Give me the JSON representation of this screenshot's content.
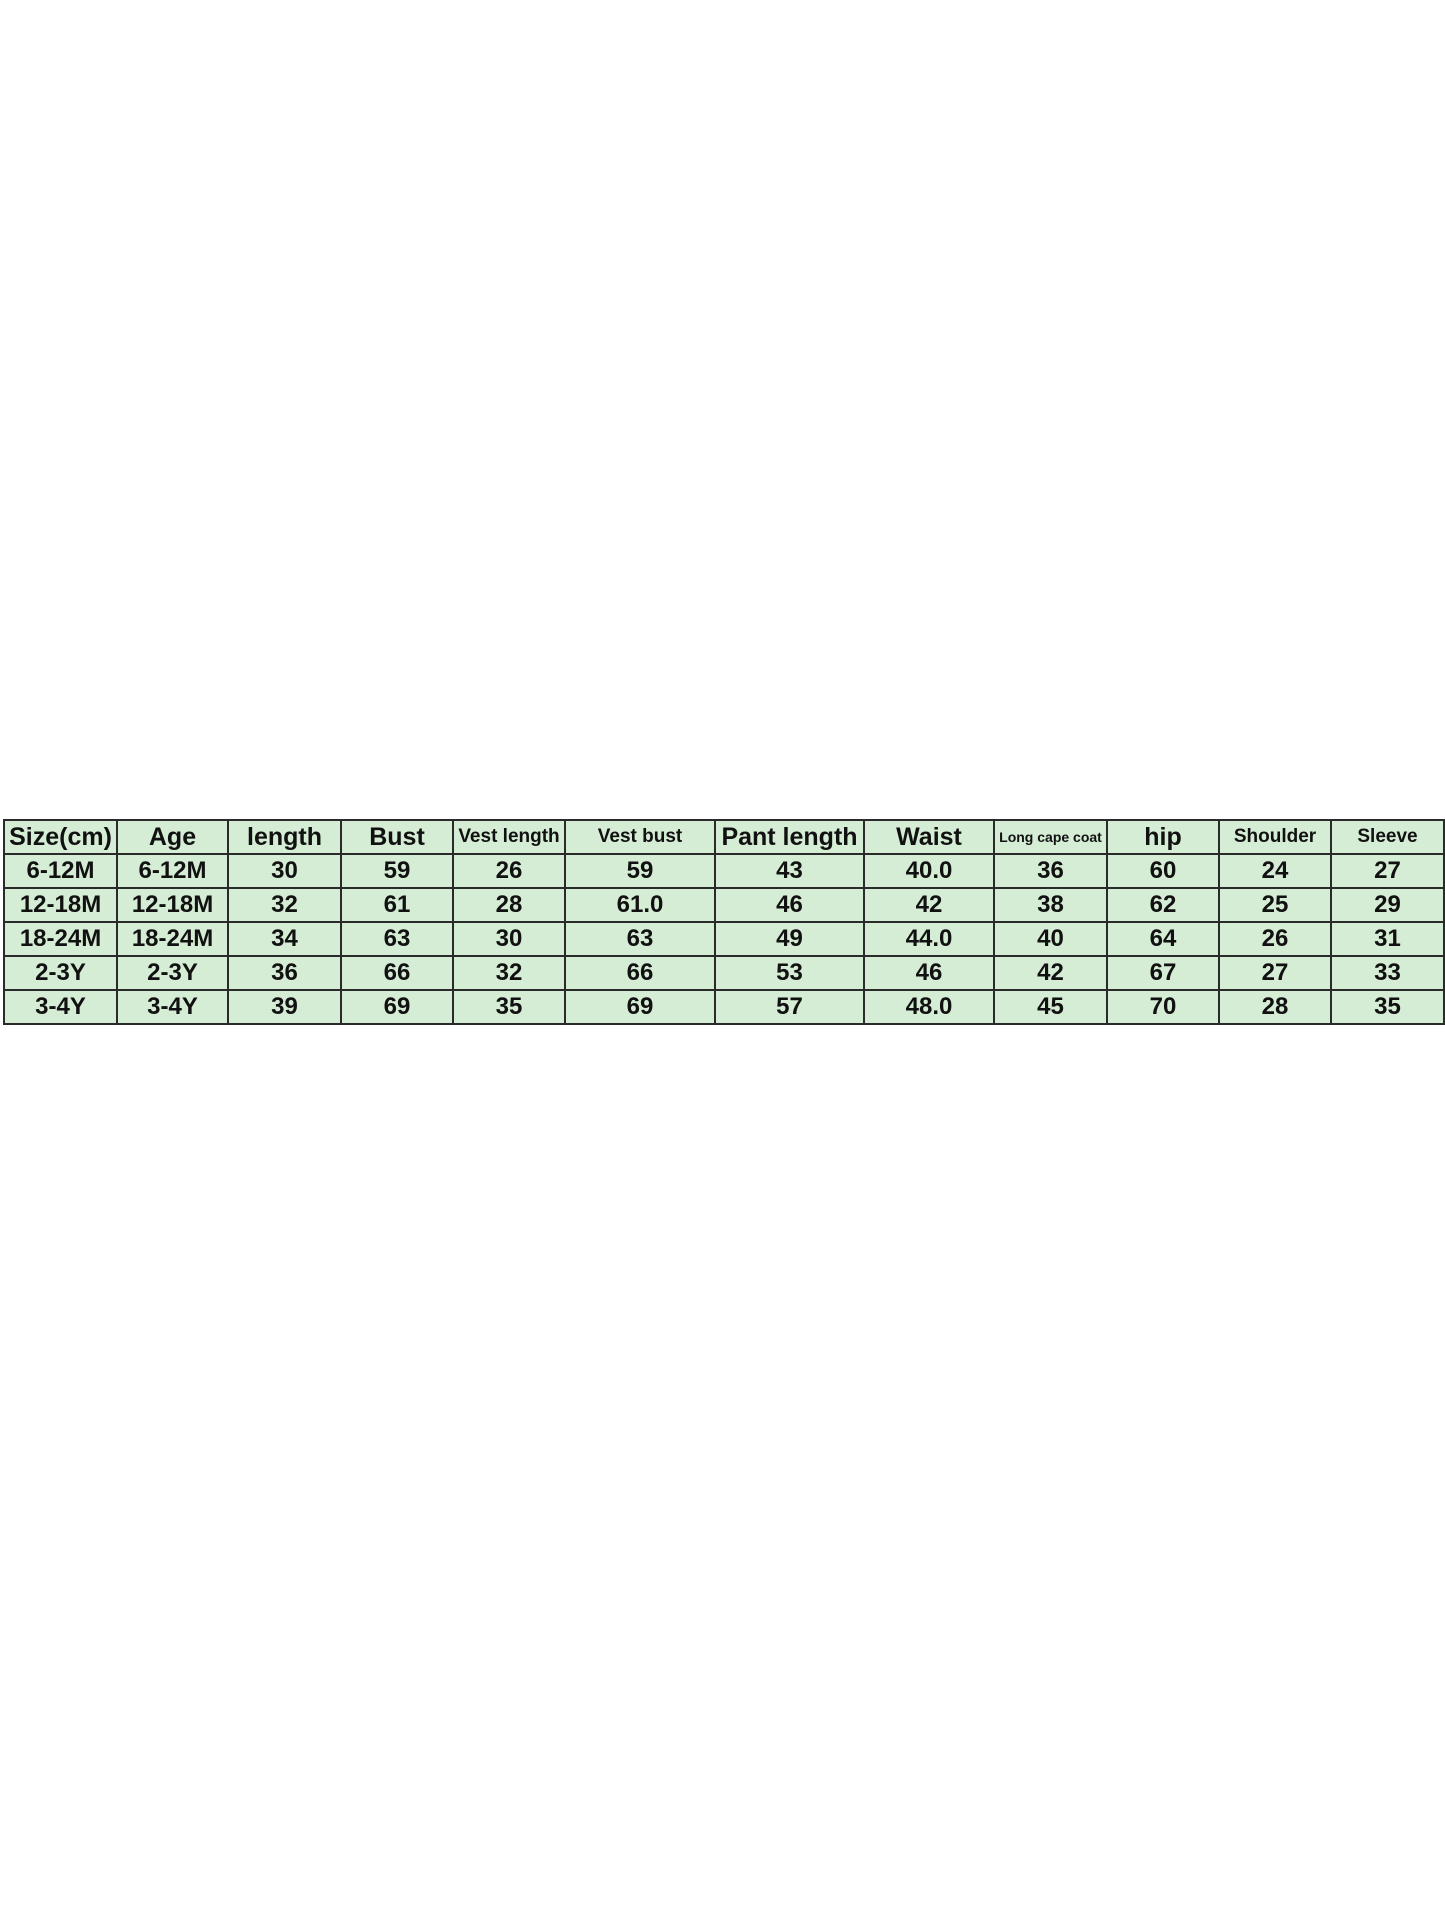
{
  "headers": [
    "Size(cm)",
    "Age",
    "length",
    "Bust",
    "Vest length",
    "Vest bust",
    "Pant length",
    "Waist",
    "Long cape coat",
    "hip",
    "Shoulder",
    "Sleeve"
  ],
  "rows": [
    [
      "6-12M",
      "6-12M",
      "30",
      "59",
      "26",
      "59",
      "43",
      "40.0",
      "36",
      "60",
      "24",
      "27"
    ],
    [
      "12-18M",
      "12-18M",
      "32",
      "61",
      "28",
      "61.0",
      "46",
      "42",
      "38",
      "62",
      "25",
      "29"
    ],
    [
      "18-24M",
      "18-24M",
      "34",
      "63",
      "30",
      "63",
      "49",
      "44.0",
      "40",
      "64",
      "26",
      "31"
    ],
    [
      "2-3Y",
      "2-3Y",
      "36",
      "66",
      "32",
      "66",
      "53",
      "46",
      "42",
      "67",
      "27",
      "33"
    ],
    [
      "3-4Y",
      "3-4Y",
      "39",
      "69",
      "35",
      "69",
      "57",
      "48.0",
      "45",
      "70",
      "28",
      "35"
    ]
  ],
  "colors": {
    "cell_background": "#d5ecd5",
    "border": "#2a2a2a"
  }
}
